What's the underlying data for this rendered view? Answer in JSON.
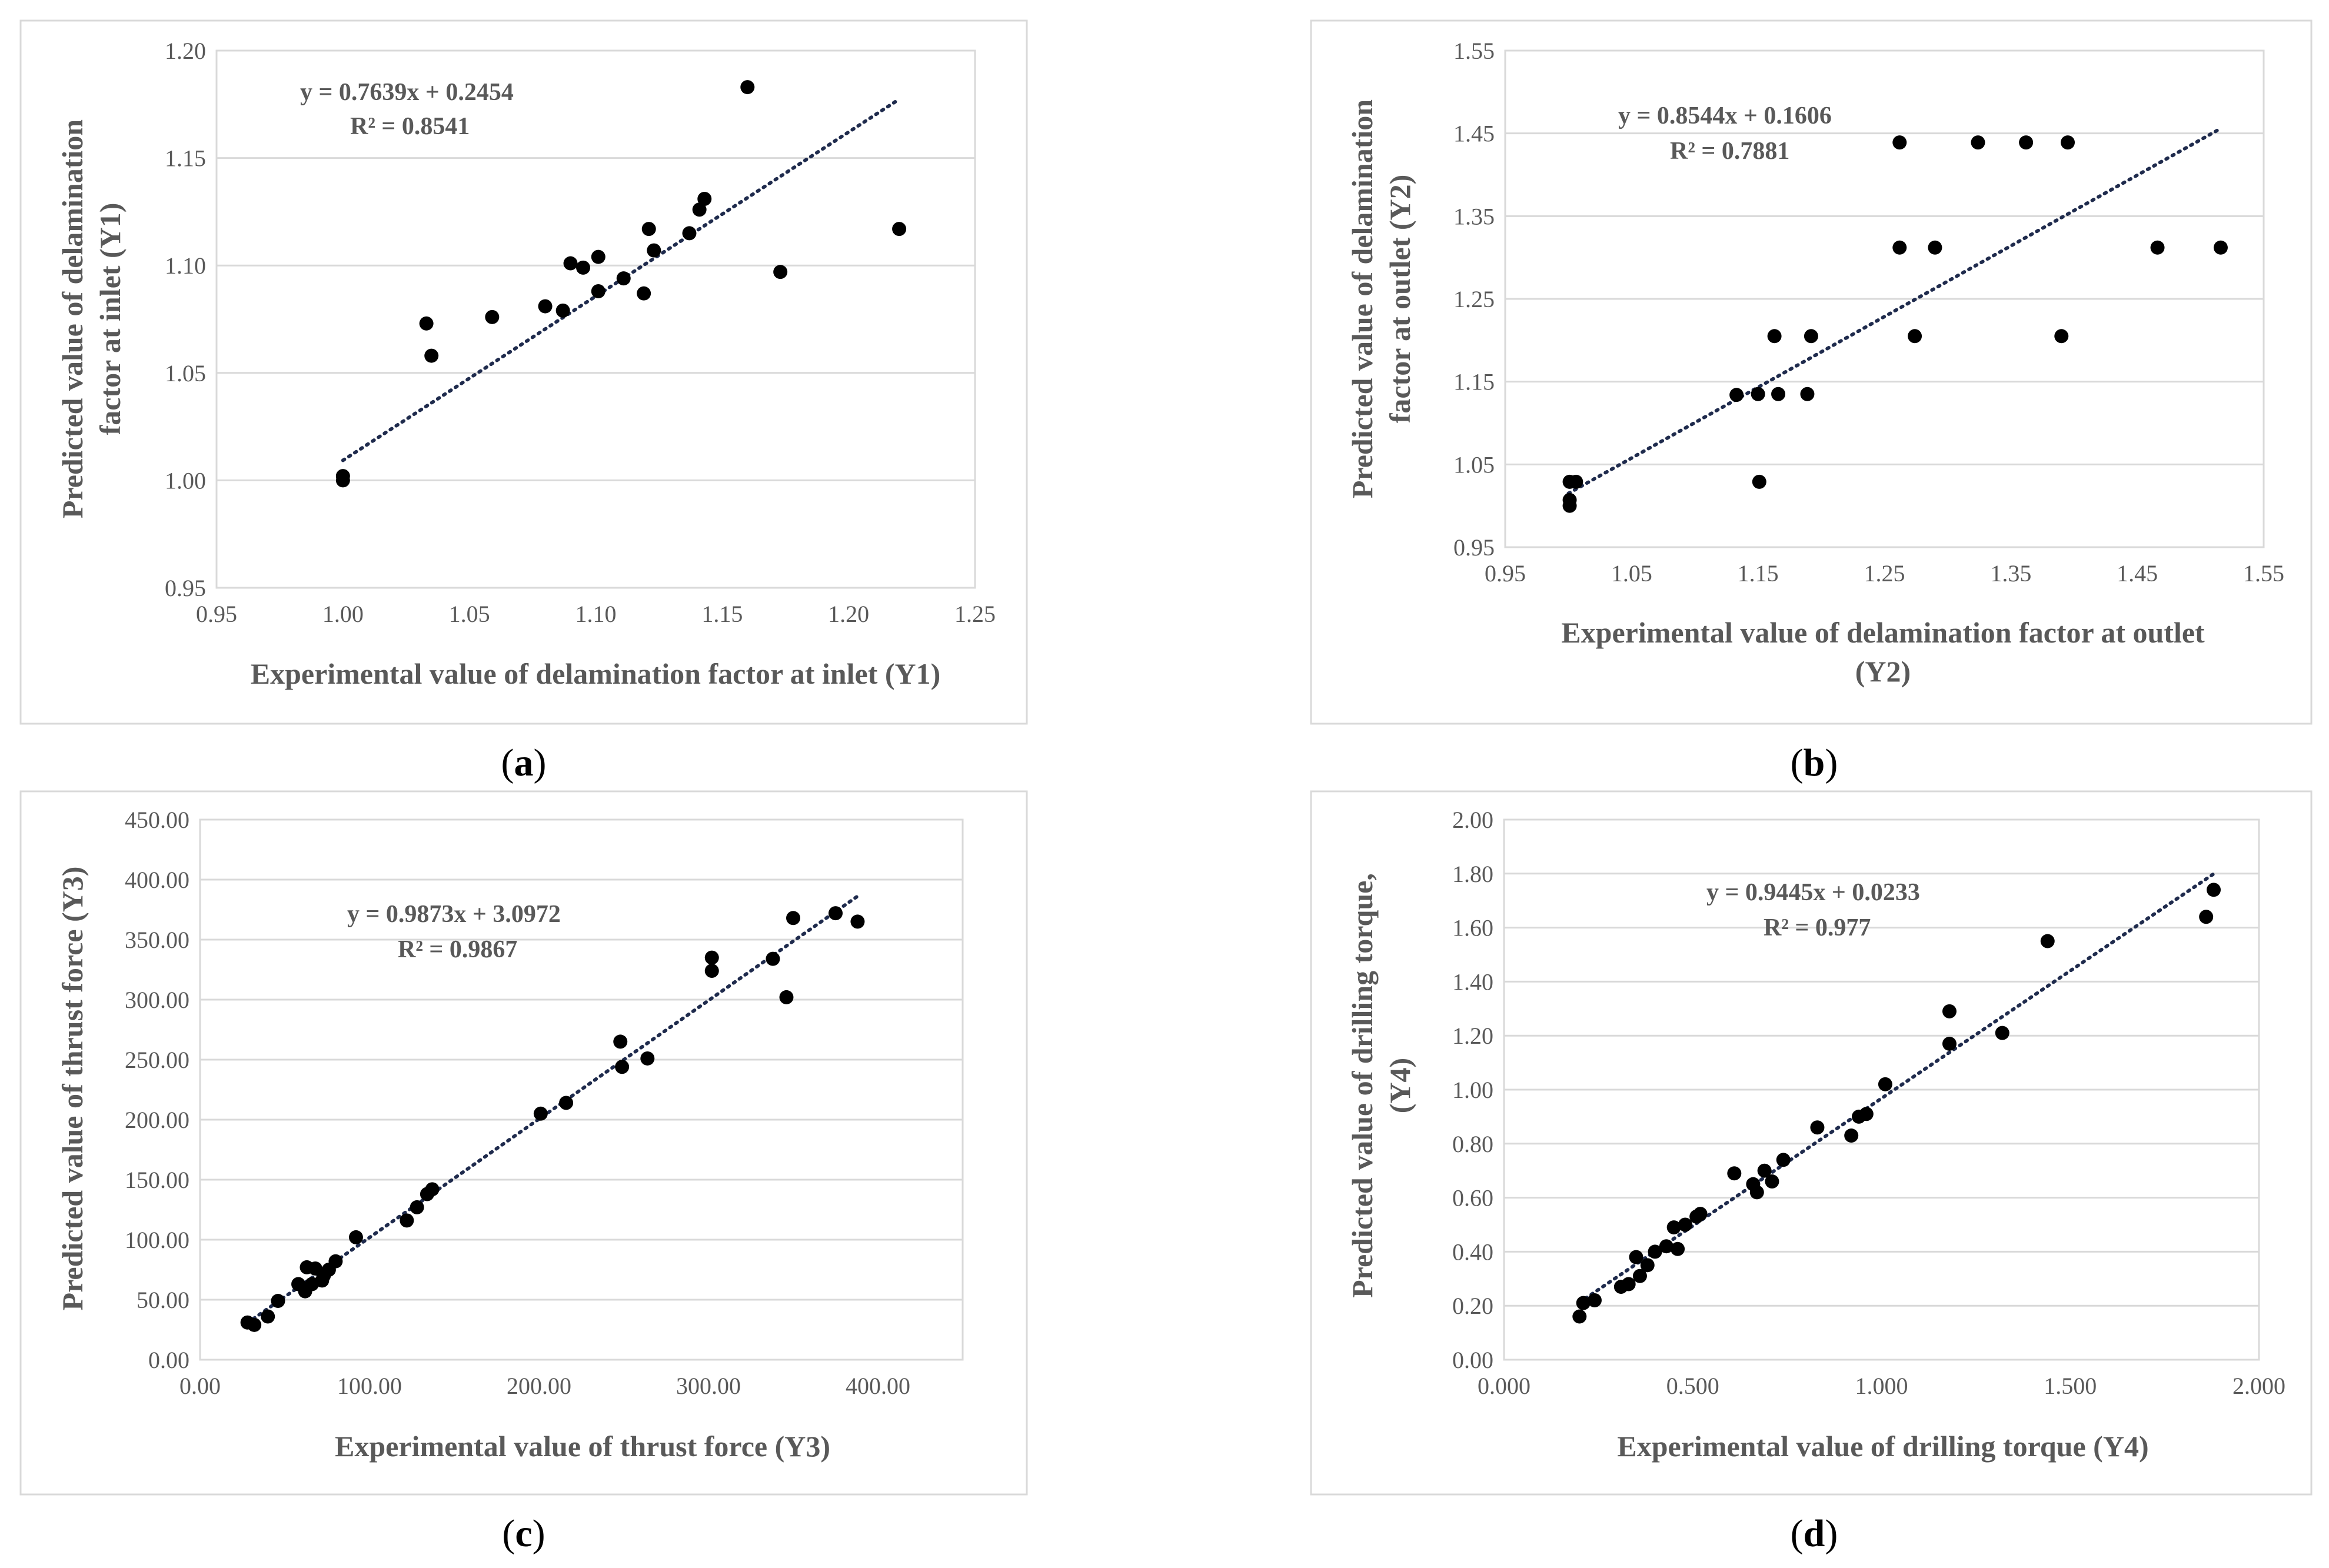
{
  "chart_data": [
    {
      "type": "scatter",
      "caption": "a",
      "xlabel": [
        "Experimental value of delamination factor at inlet (Y1)"
      ],
      "ylabel": [
        "Predicted value of delamination",
        "factor at inlet (Y1)"
      ],
      "xlim": [
        0.95,
        1.25
      ],
      "ylim": [
        0.95,
        1.2
      ],
      "xticks": [
        0.95,
        1.0,
        1.05,
        1.1,
        1.15,
        1.2,
        1.25
      ],
      "yticks": [
        0.95,
        1.0,
        1.05,
        1.1,
        1.15,
        1.2
      ],
      "xtick_labels": [
        "0.95",
        "1.00",
        "1.05",
        "1.10",
        "1.15",
        "1.20",
        "1.25"
      ],
      "ytick_labels": [
        "0.95",
        "1.00",
        "1.05",
        "1.10",
        "1.15",
        "1.20"
      ],
      "equation": "y = 0.7639x + 0.2454",
      "r2_label": "R² = 0.8541",
      "trendline": {
        "slope": 0.7639,
        "intercept": 0.2454,
        "x_range": [
          1.0,
          1.22
        ]
      },
      "points": [
        [
          1.0,
          1.002
        ],
        [
          1.0,
          1.0
        ],
        [
          1.033,
          1.073
        ],
        [
          1.035,
          1.058
        ],
        [
          1.059,
          1.076
        ],
        [
          1.08,
          1.081
        ],
        [
          1.087,
          1.079
        ],
        [
          1.09,
          1.101
        ],
        [
          1.095,
          1.099
        ],
        [
          1.101,
          1.104
        ],
        [
          1.101,
          1.088
        ],
        [
          1.111,
          1.094
        ],
        [
          1.119,
          1.087
        ],
        [
          1.121,
          1.117
        ],
        [
          1.123,
          1.107
        ],
        [
          1.137,
          1.115
        ],
        [
          1.141,
          1.126
        ],
        [
          1.143,
          1.131
        ],
        [
          1.16,
          1.183
        ],
        [
          1.173,
          1.097
        ],
        [
          1.22,
          1.117
        ]
      ]
    },
    {
      "type": "scatter",
      "caption": "b",
      "xlabel": [
        "Experimental value of delamination factor at outlet",
        "(Y2)"
      ],
      "ylabel": [
        "Predicted value of delamination",
        "factor at outlet (Y2)"
      ],
      "xlim": [
        0.95,
        1.55
      ],
      "ylim": [
        0.95,
        1.55
      ],
      "xticks": [
        0.95,
        1.05,
        1.15,
        1.25,
        1.35,
        1.45,
        1.55
      ],
      "yticks": [
        0.95,
        1.05,
        1.15,
        1.25,
        1.35,
        1.45,
        1.55
      ],
      "xtick_labels": [
        "0.95",
        "1.05",
        "1.15",
        "1.25",
        "1.35",
        "1.45",
        "1.55"
      ],
      "ytick_labels": [
        "0.95",
        "1.05",
        "1.15",
        "1.25",
        "1.35",
        "1.45",
        "1.55"
      ],
      "equation": "y = 0.8544x + 0.1606",
      "r2_label": "R² = 0.7881",
      "trendline": {
        "slope": 0.8544,
        "intercept": 0.1606,
        "x_range": [
          1.0,
          1.515
        ]
      },
      "points": [
        [
          1.001,
          1.029
        ],
        [
          1.001,
          1.007
        ],
        [
          1.001,
          1.0
        ],
        [
          1.006,
          1.029
        ],
        [
          1.133,
          1.134
        ],
        [
          1.15,
          1.135
        ],
        [
          1.151,
          1.029
        ],
        [
          1.163,
          1.205
        ],
        [
          1.166,
          1.135
        ],
        [
          1.189,
          1.135
        ],
        [
          1.192,
          1.205
        ],
        [
          1.262,
          1.439
        ],
        [
          1.262,
          1.312
        ],
        [
          1.274,
          1.205
        ],
        [
          1.29,
          1.312
        ],
        [
          1.324,
          1.439
        ],
        [
          1.362,
          1.439
        ],
        [
          1.39,
          1.205
        ],
        [
          1.395,
          1.439
        ],
        [
          1.466,
          1.312
        ],
        [
          1.516,
          1.312
        ]
      ]
    },
    {
      "type": "scatter",
      "caption": "c",
      "xlabel": [
        "Experimental value of thrust force (Y3)"
      ],
      "ylabel": [
        "Predicted value of thrust force  (Y3)"
      ],
      "xlim": [
        0,
        450
      ],
      "ylim": [
        0,
        450
      ],
      "xticks": [
        0,
        100,
        200,
        300,
        400
      ],
      "yticks": [
        0,
        50,
        100,
        150,
        200,
        250,
        300,
        350,
        400,
        450
      ],
      "xtick_labels": [
        "0.00",
        "100.00",
        "200.00",
        "300.00",
        "400.00"
      ],
      "ytick_labels": [
        "0.00",
        "50.00",
        "100.00",
        "150.00",
        "200.00",
        "250.00",
        "300.00",
        "350.00",
        "400.00",
        "450.00"
      ],
      "equation": "y = 0.9873x + 3.0972",
      "r2_label": "R² = 0.9867",
      "trendline": {
        "slope": 0.9873,
        "intercept": 3.0972,
        "x_range": [
          28,
          388
        ]
      },
      "points": [
        [
          28,
          31
        ],
        [
          32,
          29
        ],
        [
          40,
          36
        ],
        [
          46,
          49
        ],
        [
          58,
          63
        ],
        [
          62,
          57
        ],
        [
          63,
          77
        ],
        [
          66,
          63
        ],
        [
          68,
          76
        ],
        [
          72,
          66
        ],
        [
          73,
          70
        ],
        [
          76,
          75
        ],
        [
          80,
          82
        ],
        [
          92,
          102
        ],
        [
          122,
          116
        ],
        [
          128,
          127
        ],
        [
          134,
          138
        ],
        [
          137,
          142
        ],
        [
          201,
          205
        ],
        [
          216,
          214
        ],
        [
          248,
          265
        ],
        [
          249,
          244
        ],
        [
          264,
          251
        ],
        [
          302,
          335
        ],
        [
          302,
          324
        ],
        [
          338,
          334
        ],
        [
          346,
          302
        ],
        [
          350,
          368
        ],
        [
          375,
          372
        ],
        [
          388,
          365
        ]
      ]
    },
    {
      "type": "scatter",
      "caption": "d",
      "xlabel": [
        "Experimental value of drilling torque (Y4)"
      ],
      "ylabel": [
        "Predicted value of drilling torque,",
        "(Y4)"
      ],
      "xlim": [
        0,
        2
      ],
      "ylim": [
        0,
        2
      ],
      "xticks": [
        0,
        0.5,
        1.0,
        1.5,
        2.0
      ],
      "yticks": [
        0,
        0.2,
        0.4,
        0.6,
        0.8,
        1.0,
        1.2,
        1.4,
        1.6,
        1.8,
        2.0
      ],
      "xtick_labels": [
        "0.000",
        "0.500",
        "1.000",
        "1.500",
        "2.000"
      ],
      "ytick_labels": [
        "0.00",
        "0.20",
        "0.40",
        "0.60",
        "0.80",
        "1.00",
        "1.20",
        "1.40",
        "1.60",
        "1.80",
        "2.00"
      ],
      "equation": "y = 0.9445x + 0.0233",
      "r2_label": "R² = 0.977",
      "trendline": {
        "slope": 0.9445,
        "intercept": 0.0233,
        "x_range": [
          0.2,
          1.88
        ]
      },
      "points": [
        [
          0.2,
          0.16
        ],
        [
          0.21,
          0.21
        ],
        [
          0.24,
          0.22
        ],
        [
          0.31,
          0.27
        ],
        [
          0.33,
          0.28
        ],
        [
          0.35,
          0.38
        ],
        [
          0.36,
          0.31
        ],
        [
          0.38,
          0.35
        ],
        [
          0.4,
          0.4
        ],
        [
          0.43,
          0.42
        ],
        [
          0.45,
          0.49
        ],
        [
          0.46,
          0.41
        ],
        [
          0.48,
          0.5
        ],
        [
          0.51,
          0.53
        ],
        [
          0.52,
          0.54
        ],
        [
          0.61,
          0.69
        ],
        [
          0.66,
          0.65
        ],
        [
          0.67,
          0.62
        ],
        [
          0.69,
          0.7
        ],
        [
          0.71,
          0.66
        ],
        [
          0.74,
          0.74
        ],
        [
          0.83,
          0.86
        ],
        [
          0.92,
          0.83
        ],
        [
          0.94,
          0.9
        ],
        [
          0.96,
          0.91
        ],
        [
          1.01,
          1.02
        ],
        [
          1.18,
          1.29
        ],
        [
          1.18,
          1.17
        ],
        [
          1.32,
          1.21
        ],
        [
          1.44,
          1.55
        ],
        [
          1.86,
          1.64
        ],
        [
          1.88,
          1.74
        ]
      ]
    }
  ]
}
